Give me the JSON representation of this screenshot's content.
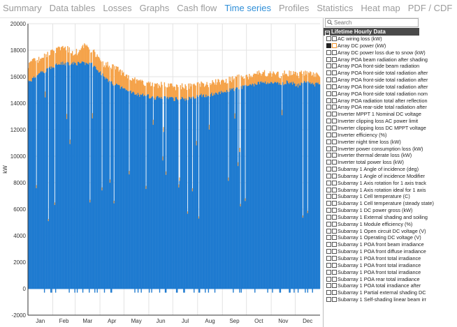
{
  "tabs": [
    {
      "label": "Summary",
      "active": false
    },
    {
      "label": "Data tables",
      "active": false
    },
    {
      "label": "Losses",
      "active": false
    },
    {
      "label": "Graphs",
      "active": false
    },
    {
      "label": "Cash flow",
      "active": false
    },
    {
      "label": "Time series",
      "active": true
    },
    {
      "label": "Profiles",
      "active": false
    },
    {
      "label": "Statistics",
      "active": false
    },
    {
      "label": "Heat map",
      "active": false
    },
    {
      "label": "PDF / CDF",
      "active": false
    }
  ],
  "panel": {
    "search_placeholder": "Search",
    "group_header": "Lifetime Hourly Data",
    "items": [
      {
        "label": "AC wiring loss (kW)",
        "checked": false
      },
      {
        "label": "Array DC power (kW)",
        "checked": true
      },
      {
        "label": "Array DC power loss due to snow (kW)",
        "checked": false
      },
      {
        "label": "Array POA beam radiation after shading",
        "checked": false
      },
      {
        "label": "Array POA front-side beam radiation",
        "checked": false
      },
      {
        "label": "Array POA front-side total radiation after",
        "checked": false
      },
      {
        "label": "Array POA front-side total radiation after",
        "checked": false
      },
      {
        "label": "Array POA front-side total radiation after",
        "checked": false
      },
      {
        "label": "Array POA front-side total radiation nom",
        "checked": false
      },
      {
        "label": "Array POA radiation total after reflection",
        "checked": false
      },
      {
        "label": "Array POA rear-side total radiation after",
        "checked": false
      },
      {
        "label": "Inverter MPPT 1 Nominal DC voltage",
        "checked": false
      },
      {
        "label": "Inverter clipping loss AC power limit",
        "checked": false
      },
      {
        "label": "Inverter clipping loss DC MPPT voltage",
        "checked": false
      },
      {
        "label": "Inverter efficiency (%)",
        "checked": false
      },
      {
        "label": "Inverter night time loss (kW)",
        "checked": false
      },
      {
        "label": "Inverter power consumption loss (kW)",
        "checked": false
      },
      {
        "label": "Inverter thermal derate loss (kW)",
        "checked": false
      },
      {
        "label": "Inverter total power loss (kW)",
        "checked": false
      },
      {
        "label": "Subarray 1 Angle of incidence (deg)",
        "checked": false
      },
      {
        "label": "Subarray 1 Angle of incidence Modifier",
        "checked": false
      },
      {
        "label": "Subarray 1 Axis rotation for 1 axis track",
        "checked": false
      },
      {
        "label": "Subarray 1 Axis rotation ideal for 1 axis",
        "checked": false
      },
      {
        "label": "Subarray 1 Cell temperature (C)",
        "checked": false
      },
      {
        "label": "Subarray 1 Cell temperature (steady state)",
        "checked": false
      },
      {
        "label": "Subarray 1 DC power gross (kW)",
        "checked": false
      },
      {
        "label": "Subarray 1 External shading and soiling",
        "checked": false
      },
      {
        "label": "Subarray 1 Module efficiency (%)",
        "checked": false
      },
      {
        "label": "Subarray 1 Open circuit DC voltage (V)",
        "checked": false
      },
      {
        "label": "Subarray 1 Operating DC voltage (V)",
        "checked": false
      },
      {
        "label": "Subarray 1 POA front beam irradiance",
        "checked": false
      },
      {
        "label": "Subarray 1 POA front diffuse irradiance",
        "checked": false
      },
      {
        "label": "Subarray 1 POA front total irradiance",
        "checked": false
      },
      {
        "label": "Subarray 1 POA front total irradiance",
        "checked": false
      },
      {
        "label": "Subarray 1 POA front total irradiance",
        "checked": false
      },
      {
        "label": "Subarray 1 POA rear total irradiance",
        "checked": false
      },
      {
        "label": "Subarray 1 POA total irradiance after",
        "checked": false
      },
      {
        "label": "Subarray 1 Partial external shading DC",
        "checked": false
      },
      {
        "label": "Subarray 1 Self-shading linear beam irr",
        "checked": false
      }
    ]
  },
  "chart_data": {
    "type": "area",
    "ylabel": "kW",
    "xlabel": "",
    "title": "",
    "ylim": [
      -2000,
      20000
    ],
    "yticks": [
      -2000,
      0,
      2000,
      4000,
      6000,
      8000,
      10000,
      12000,
      14000,
      16000,
      18000,
      20000
    ],
    "ytick_labels": [
      "-2000",
      "0",
      "2000",
      "4000",
      "6000",
      "8000",
      "10000",
      "12000",
      "14000",
      "16000",
      "18000",
      "20000"
    ],
    "months": [
      "Jan",
      "Feb",
      "Mar",
      "Apr",
      "May",
      "Jun",
      "Jul",
      "Aug",
      "Sep",
      "Oct",
      "Nov",
      "Dec"
    ],
    "grid": true,
    "legend": "none",
    "colors": {
      "base": "#1f7bd0",
      "peak": "#f5a34a",
      "grid": "#e3e3e3",
      "axis": "#333333"
    },
    "series": [
      {
        "name": "Array DC power (kW)",
        "color": "#f5a34a",
        "weekly_peak": [
          16900,
          17200,
          17300,
          17600,
          17800,
          18000,
          18200,
          18100,
          17800,
          17900,
          18300,
          18100,
          17700,
          17000,
          16900,
          16800,
          16500,
          16200,
          16000,
          15700,
          15600,
          15500,
          15400,
          15300,
          15400,
          15300,
          15200,
          15300,
          15200,
          15300,
          15400,
          15500,
          15400,
          15600,
          15600,
          15700,
          15800,
          15900,
          16000,
          16000,
          16200,
          16300,
          16300,
          16200,
          16200,
          16100,
          16300,
          16200,
          16100,
          16300,
          16300,
          16100,
          16200
        ]
      },
      {
        "name": "",
        "color": "#1f7bd0",
        "weekly_peak": [
          15600,
          15900,
          16300,
          16400,
          16700,
          16900,
          17000,
          17000,
          17000,
          17000,
          17000,
          17000,
          16700,
          16200,
          15800,
          15500,
          15300,
          15100,
          14900,
          14700,
          14600,
          14600,
          14400,
          14400,
          14500,
          14400,
          14300,
          14400,
          14300,
          14400,
          14500,
          14600,
          14600,
          14700,
          14800,
          14900,
          15000,
          15100,
          15200,
          15300,
          15400,
          15500,
          15600,
          15500,
          15500,
          15400,
          15600,
          15500,
          15300,
          15600,
          15600,
          15400,
          15500
        ]
      }
    ],
    "night_min": -300
  }
}
